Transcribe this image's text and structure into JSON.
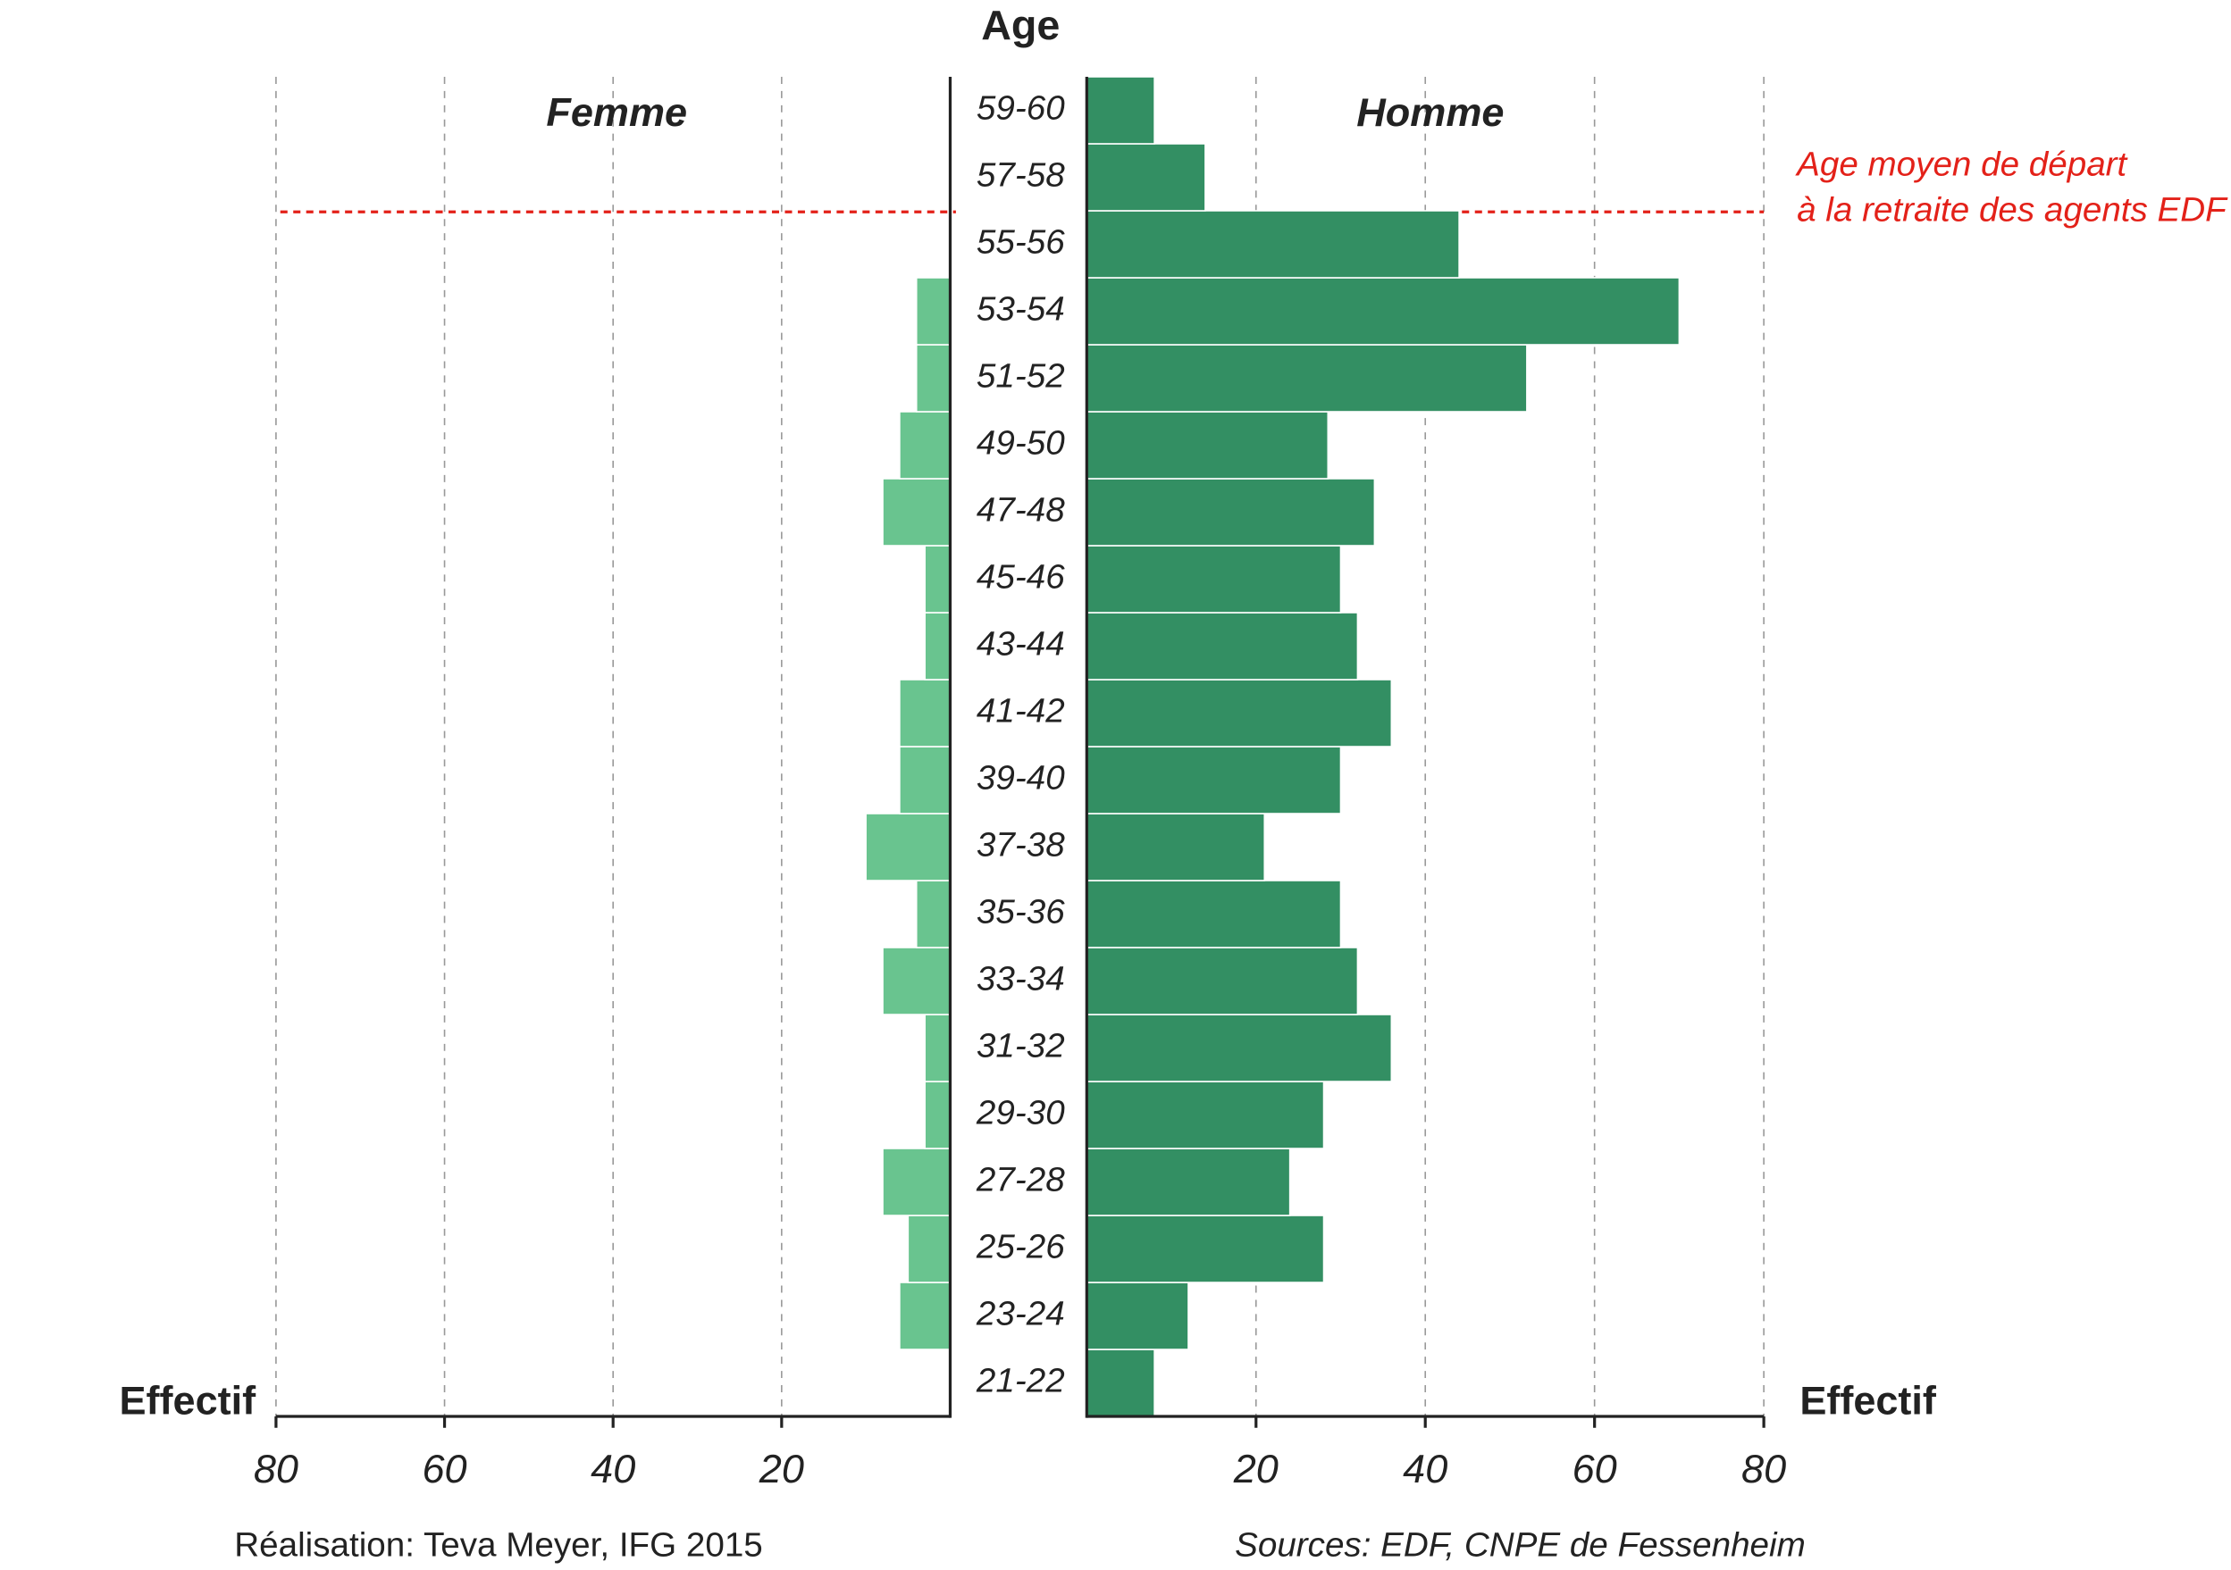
{
  "chart_data": {
    "type": "pyramid",
    "y_label": "Age",
    "x_label": "Effectif",
    "categories": [
      "21-22",
      "23-24",
      "25-26",
      "27-28",
      "29-30",
      "31-32",
      "33-34",
      "35-36",
      "37-38",
      "39-40",
      "41-42",
      "43-44",
      "45-46",
      "47-48",
      "49-50",
      "51-52",
      "53-54",
      "55-56",
      "57-58",
      "59-60"
    ],
    "series": [
      {
        "name": "Femme",
        "color": "#69c48f",
        "values": [
          0,
          6,
          5,
          8,
          3,
          3,
          8,
          4,
          10,
          6,
          6,
          3,
          3,
          8,
          6,
          4,
          4,
          0,
          0,
          0
        ]
      },
      {
        "name": "Homme",
        "color": "#338f63",
        "values": [
          8,
          12,
          28,
          24,
          28,
          36,
          32,
          30,
          21,
          30,
          36,
          32,
          30,
          34,
          28.5,
          52,
          70,
          44,
          14,
          8
        ]
      }
    ],
    "xlim": [
      0,
      80
    ],
    "xticks": [
      20,
      40,
      60,
      80
    ],
    "grid": true,
    "annotation": [
      "Age moyen de départ",
      "à la retraite des agents EDF"
    ],
    "credit": "Réalisation: Teva Meyer, IFG 2015",
    "source": "Sources: EDF, CNPE de Fessenheim"
  }
}
